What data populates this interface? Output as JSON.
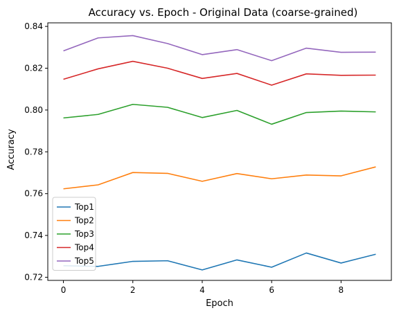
{
  "chart_data": {
    "type": "line",
    "title": "Accuracy vs. Epoch - Original Data (coarse-grained)",
    "xlabel": "Epoch",
    "ylabel": "Accuracy",
    "x": [
      0,
      1,
      2,
      3,
      4,
      5,
      6,
      7,
      8,
      9
    ],
    "xlim": [
      -0.45,
      9.45
    ],
    "ylim": [
      0.7185,
      0.8417
    ],
    "xticks": [
      0,
      2,
      4,
      6,
      8
    ],
    "yticks": [
      0.72,
      0.74,
      0.76,
      0.78,
      0.8,
      0.82,
      0.84
    ],
    "ytick_labels": [
      "0.72",
      "0.74",
      "0.76",
      "0.78",
      "0.80",
      "0.82",
      "0.84"
    ],
    "grid": false,
    "legend_position": "lower-left",
    "series": [
      {
        "name": "Top1",
        "color": "#1f77b4",
        "values": [
          0.7255,
          0.7252,
          0.7276,
          0.7279,
          0.7235,
          0.7283,
          0.7248,
          0.7316,
          0.7268,
          0.731
        ]
      },
      {
        "name": "Top2",
        "color": "#ff7f0e",
        "values": [
          0.7623,
          0.7642,
          0.7701,
          0.7697,
          0.7659,
          0.7696,
          0.7671,
          0.7689,
          0.7685,
          0.7728
        ]
      },
      {
        "name": "Top3",
        "color": "#2ca02c",
        "values": [
          0.7962,
          0.7979,
          0.8027,
          0.8013,
          0.7964,
          0.7998,
          0.7932,
          0.7988,
          0.7995,
          0.7991
        ]
      },
      {
        "name": "Top4",
        "color": "#d62728",
        "values": [
          0.8147,
          0.8197,
          0.8233,
          0.82,
          0.8151,
          0.8175,
          0.8119,
          0.8173,
          0.8166,
          0.8167
        ]
      },
      {
        "name": "Top5",
        "color": "#9467bd",
        "values": [
          0.8283,
          0.8345,
          0.8356,
          0.8318,
          0.8265,
          0.8289,
          0.8236,
          0.8296,
          0.8276,
          0.8277
        ]
      }
    ]
  }
}
